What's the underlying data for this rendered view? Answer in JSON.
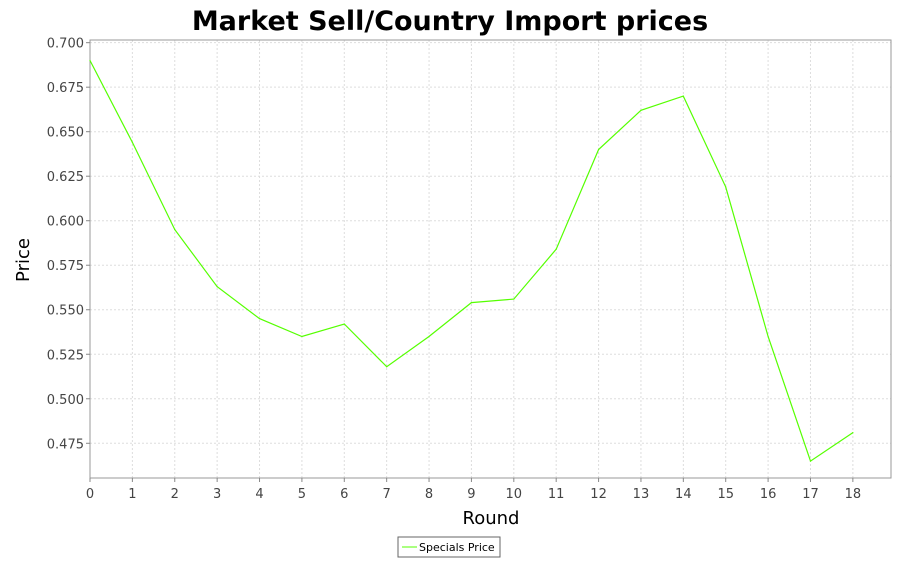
{
  "chart_data": {
    "type": "line",
    "title": "Market Sell/Country Import prices",
    "xlabel": "Round",
    "ylabel": "Price",
    "xlim": [
      0,
      18.9
    ],
    "ylim": [
      0.4555,
      0.7015
    ],
    "x_ticks": [
      0,
      1,
      2,
      3,
      4,
      5,
      6,
      7,
      8,
      9,
      10,
      11,
      12,
      13,
      14,
      15,
      16,
      17,
      18
    ],
    "y_ticks": [
      0.475,
      0.5,
      0.525,
      0.55,
      0.575,
      0.6,
      0.625,
      0.65,
      0.675,
      0.7
    ],
    "y_tick_labels": [
      "0.475",
      "0.500",
      "0.525",
      "0.550",
      "0.575",
      "0.600",
      "0.625",
      "0.650",
      "0.675",
      "0.700"
    ],
    "grid": true,
    "legend_position": "bottom-center",
    "series": [
      {
        "name": "Specials Price",
        "color": "#55ff00",
        "x": [
          0,
          1,
          2,
          3,
          4,
          5,
          6,
          7,
          8,
          9,
          10,
          11,
          12,
          13,
          14,
          15,
          16,
          17,
          18
        ],
        "values": [
          0.69,
          0.644,
          0.595,
          0.563,
          0.545,
          0.535,
          0.542,
          0.518,
          0.535,
          0.554,
          0.556,
          0.584,
          0.64,
          0.662,
          0.67,
          0.619,
          0.535,
          0.465,
          0.481
        ]
      }
    ]
  }
}
